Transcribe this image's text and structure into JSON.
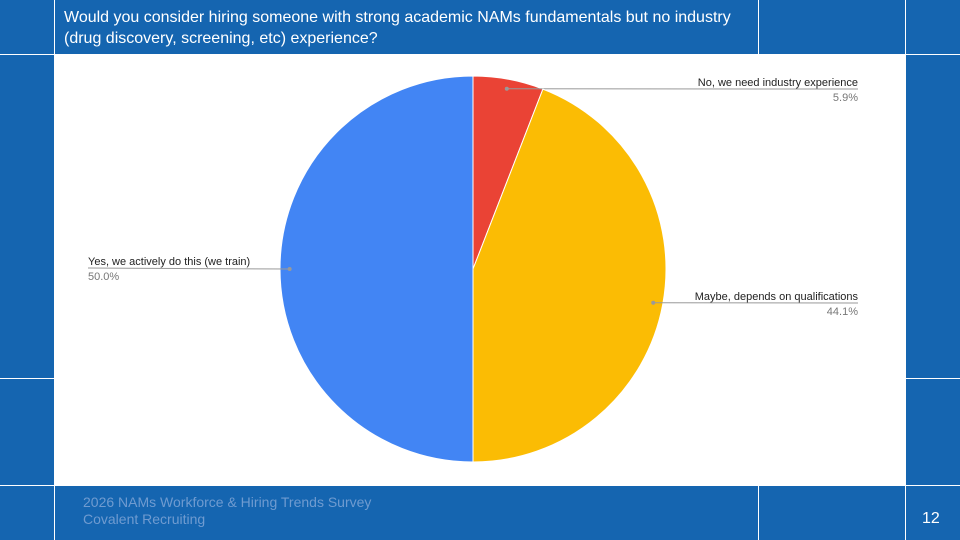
{
  "title": "Would you consider hiring someone with strong academic NAMs fundamentals but no industry (drug discovery, screening, etc) experience?",
  "footer": {
    "line1": "2026 NAMs Workforce & Hiring Trends Survey",
    "line2": "Covalent Recruiting"
  },
  "page_number": "12",
  "chart_data": {
    "type": "pie",
    "title": "",
    "start_angle_deg": 0,
    "direction": "clockwise",
    "slices": [
      {
        "label": "No, we need industry experience",
        "value": 5.9,
        "display": "5.9%",
        "color": "#ea4335"
      },
      {
        "label": "Maybe, depends on qualifications",
        "value": 44.1,
        "display": "44.1%",
        "color": "#fbbc04"
      },
      {
        "label": "Yes, we actively do this (we train)",
        "value": 50.0,
        "display": "50.0%",
        "color": "#4285f4"
      }
    ]
  }
}
